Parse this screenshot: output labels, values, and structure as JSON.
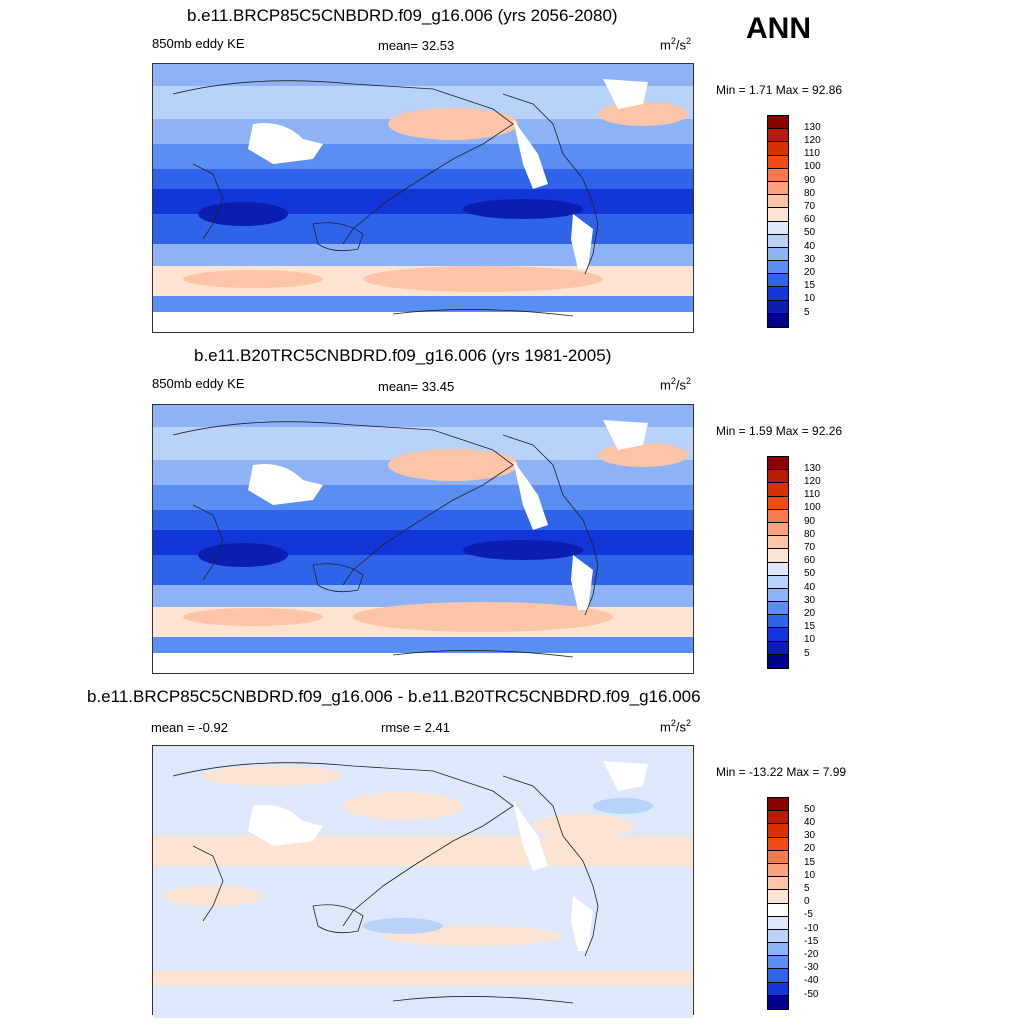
{
  "season": "ANN",
  "panels": [
    {
      "title": "b.e11.BRCP85C5CNBDRD.f09_g16.006 (yrs 2056-2080)",
      "left_label": "850mb eddy KE",
      "center_label": "mean=  32.53",
      "units_base": "m",
      "units_exp1": "2",
      "units_mid": "/s",
      "units_exp2": "2",
      "minmax": "Min =   1.71 Max =  92.86",
      "colorbar_labels": [
        "130",
        "120",
        "110",
        "100",
        "90",
        "80",
        "70",
        "60",
        "50",
        "40",
        "30",
        "20",
        "15",
        "10",
        "5"
      ]
    },
    {
      "title": "b.e11.B20TRC5CNBDRD.f09_g16.006 (yrs 1981-2005)",
      "left_label": "850mb eddy KE",
      "center_label": "mean=  33.45",
      "units_base": "m",
      "units_exp1": "2",
      "units_mid": "/s",
      "units_exp2": "2",
      "minmax": "Min =   1.59 Max =  92.26",
      "colorbar_labels": [
        "130",
        "120",
        "110",
        "100",
        "90",
        "80",
        "70",
        "60",
        "50",
        "40",
        "30",
        "20",
        "15",
        "10",
        "5"
      ]
    },
    {
      "title": "b.e11.BRCP85C5CNBDRD.f09_g16.006 - b.e11.B20TRC5CNBDRD.f09_g16.006",
      "left_label": "mean =  -0.92",
      "center_label": "rmse =   2.41",
      "units_base": "m",
      "units_exp1": "2",
      "units_mid": "/s",
      "units_exp2": "2",
      "minmax": "Min = -13.22 Max =   7.99",
      "colorbar_labels": [
        "50",
        "40",
        "30",
        "20",
        "15",
        "10",
        "5",
        "0",
        "-5",
        "-10",
        "-15",
        "-20",
        "-30",
        "-40",
        "-50"
      ]
    }
  ],
  "colors": {
    "abs_scale": [
      "#8b0000",
      "#b71c00",
      "#d83000",
      "#f24a14",
      "#fa7a50",
      "#fba27e",
      "#fcc5a8",
      "#fde4d2",
      "#dde9fb",
      "#b9d2fa",
      "#8db3f6",
      "#5a8ef2",
      "#2f63ea",
      "#1336d8",
      "#0a1fb0",
      "#00008b"
    ],
    "diff_scale": [
      "#8b0000",
      "#b71c00",
      "#d83000",
      "#f24a14",
      "#fa7a50",
      "#fba27e",
      "#fcc5a8",
      "#fde4d2",
      "#ffffff",
      "#dde9fb",
      "#b9d2fa",
      "#8db3f6",
      "#5a8ef2",
      "#2f63ea",
      "#1336d8",
      "#00008b"
    ]
  }
}
